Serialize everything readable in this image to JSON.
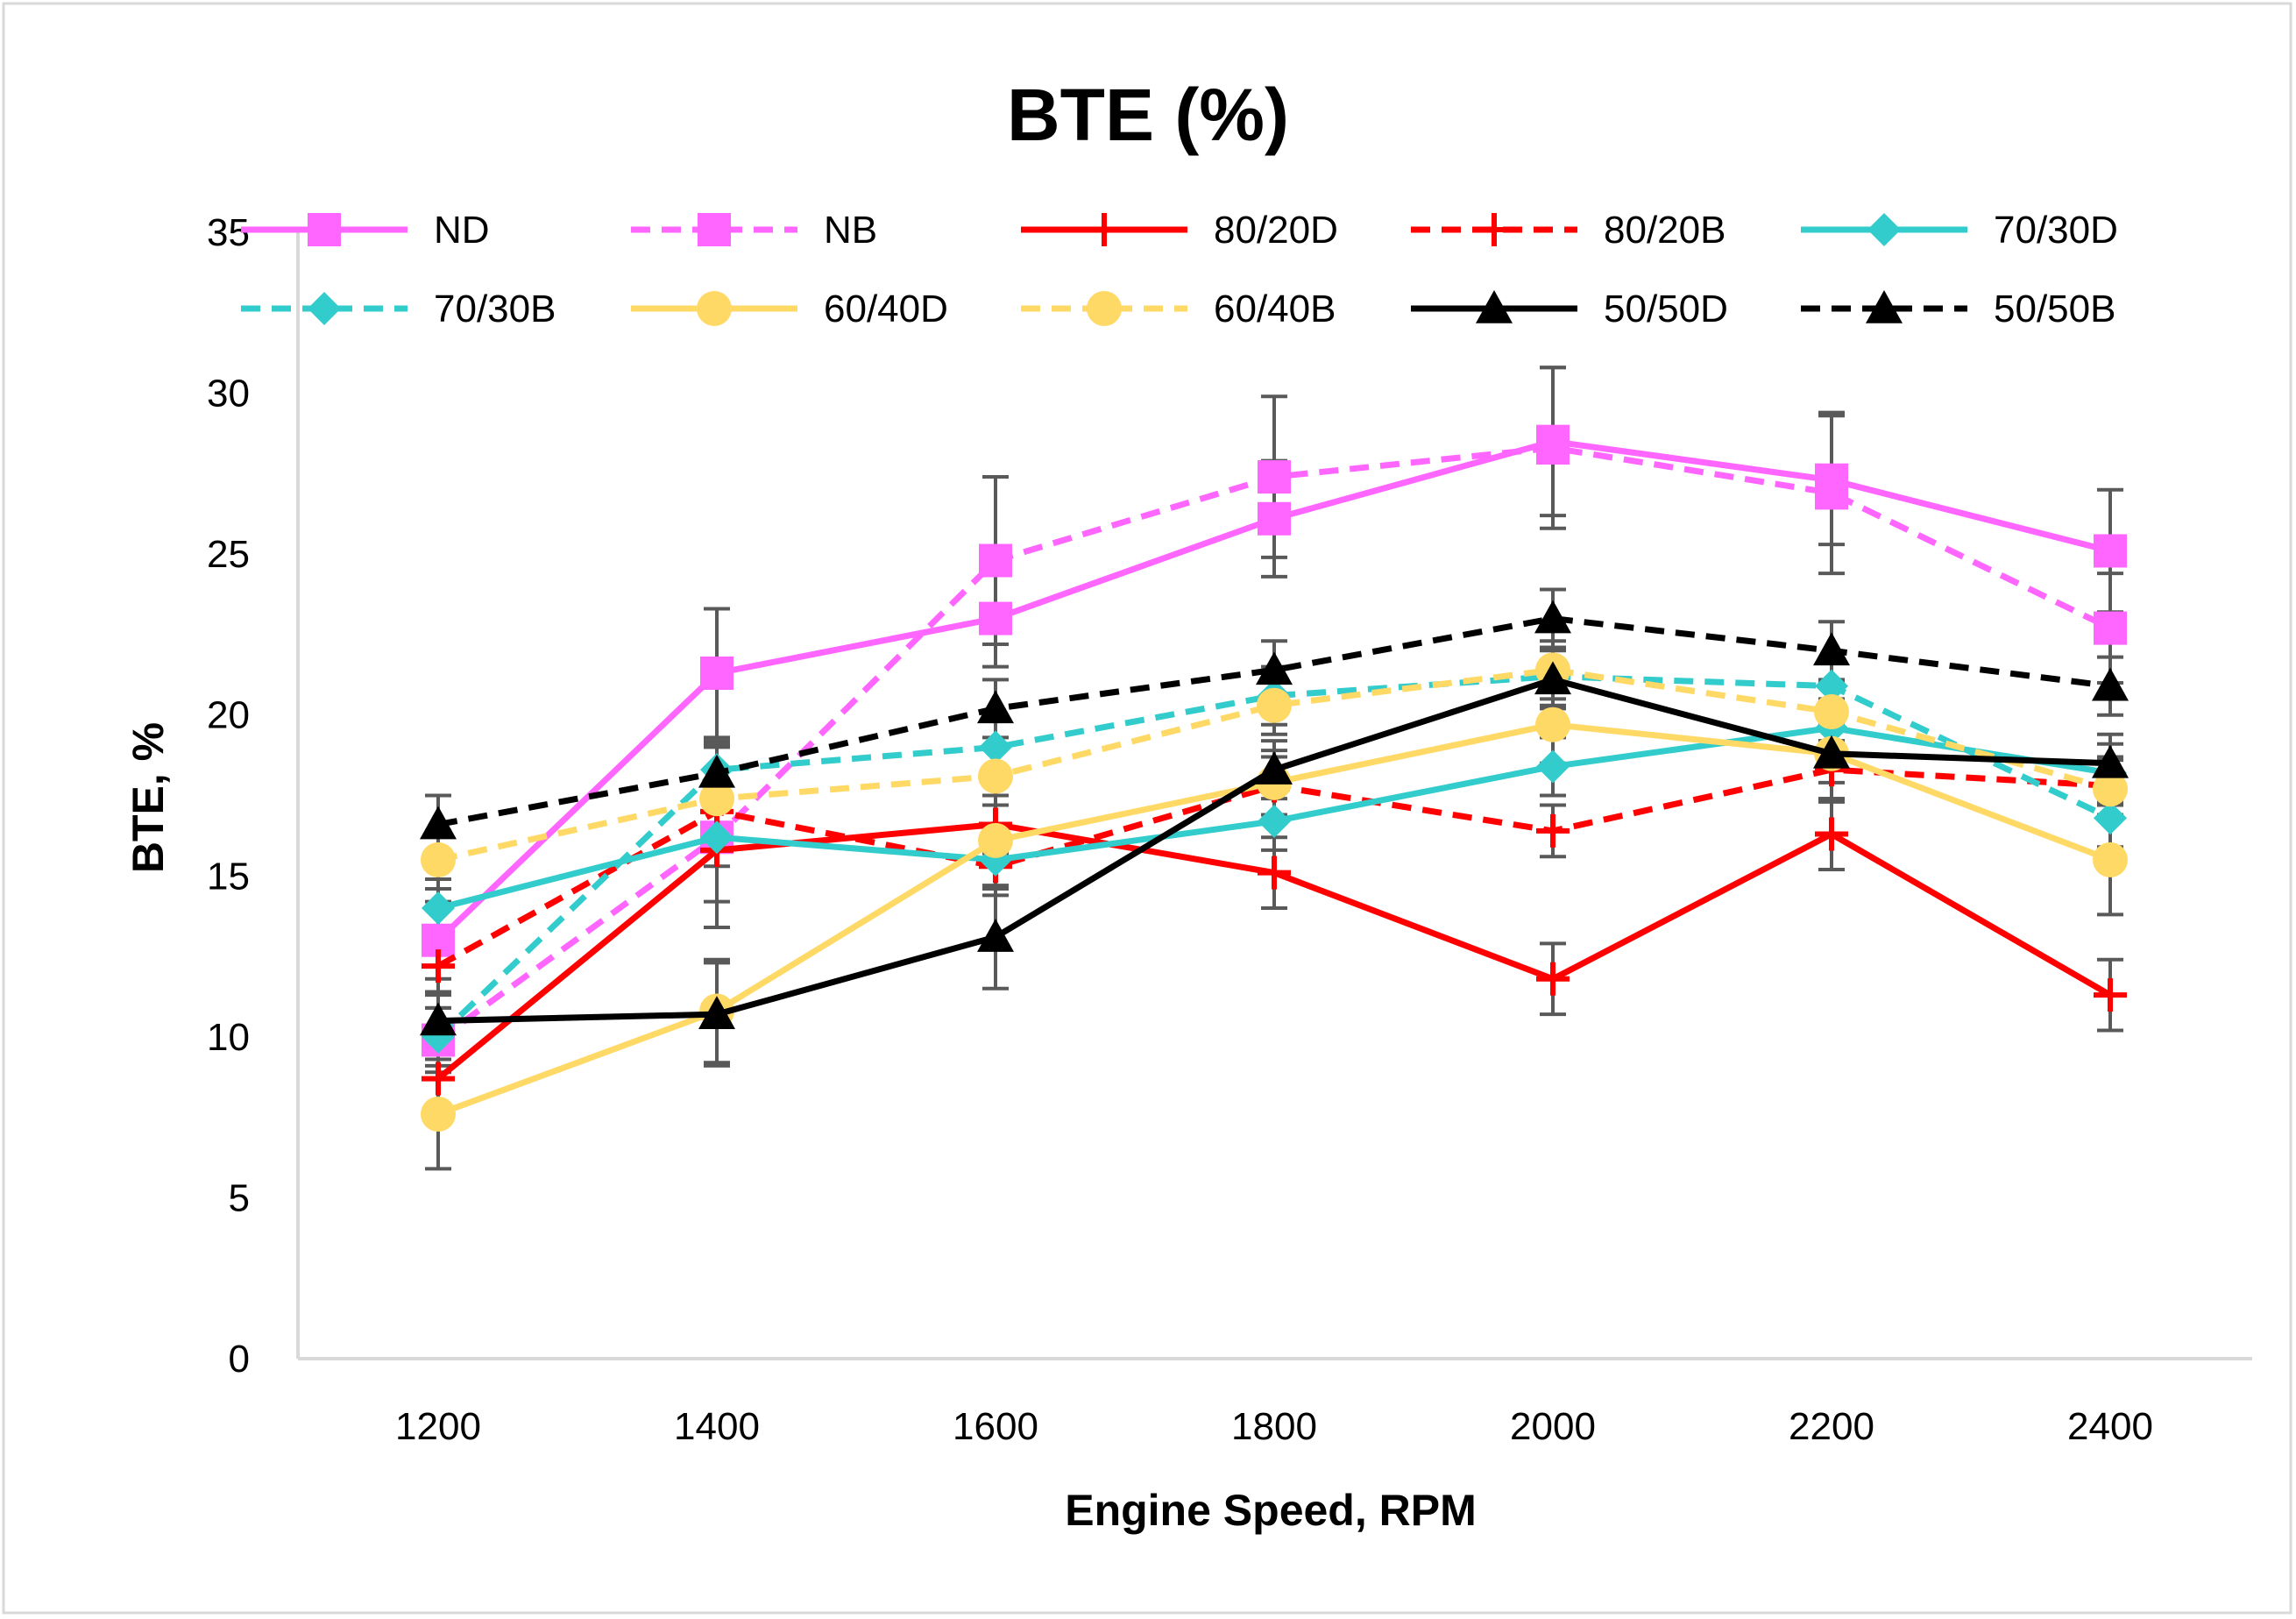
{
  "chart_data": {
    "type": "line",
    "title": "BTE (%)",
    "xlabel": "Engine Speed, RPM",
    "ylabel": "BTE, %",
    "categories": [
      "1200",
      "1400",
      "1600",
      "1800",
      "2000",
      "2200",
      "2400"
    ],
    "ylim": [
      0,
      35
    ],
    "yticks": [
      "0",
      "5",
      "10",
      "15",
      "20",
      "25",
      "30",
      "35"
    ],
    "grid": false,
    "legend_position": "top",
    "series": [
      {
        "name": "ND",
        "values": [
          13.0,
          21.3,
          23.0,
          26.1,
          28.5,
          27.3,
          25.1
        ],
        "error": [
          1.2,
          2.0,
          1.5,
          1.8,
          2.3,
          2.0,
          1.9
        ],
        "color": "#ff66ff",
        "dash": "solid",
        "marker": "square"
      },
      {
        "name": "NB",
        "values": [
          9.9,
          16.2,
          24.8,
          27.4,
          28.3,
          26.9,
          22.7
        ],
        "error": [
          1.0,
          2.8,
          2.6,
          2.5,
          2.5,
          2.5,
          1.7
        ],
        "color": "#ff66ff",
        "dash": "dashed",
        "marker": "square"
      },
      {
        "name": "80/20D",
        "values": [
          8.7,
          15.8,
          16.6,
          15.1,
          11.8,
          16.3,
          11.3
        ],
        "error": [
          1.0,
          1.6,
          0.9,
          1.1,
          1.1,
          1.1,
          1.1
        ],
        "color": "#ff0000",
        "dash": "solid",
        "marker": "plus"
      },
      {
        "name": "80/20B",
        "values": [
          12.2,
          17.0,
          15.3,
          17.8,
          16.4,
          18.3,
          17.8
        ],
        "error": [
          0.9,
          1.0,
          0.9,
          0.9,
          0.8,
          0.9,
          0.9
        ],
        "color": "#ff0000",
        "dash": "dashed",
        "marker": "plus"
      },
      {
        "name": "70/30D",
        "values": [
          14.0,
          16.2,
          15.5,
          16.7,
          18.4,
          19.6,
          18.2
        ],
        "error": [
          0.9,
          0.9,
          0.9,
          0.9,
          0.9,
          0.9,
          0.9
        ],
        "color": "#33cccc",
        "dash": "solid",
        "marker": "diamond"
      },
      {
        "name": "70/30B",
        "values": [
          10.0,
          18.3,
          19.0,
          20.6,
          21.2,
          20.9,
          16.8
        ],
        "error": [
          0.9,
          0.9,
          0.9,
          0.9,
          0.9,
          0.9,
          0.9
        ],
        "color": "#33cccc",
        "dash": "dashed",
        "marker": "diamond"
      },
      {
        "name": "60/40D",
        "values": [
          7.6,
          10.8,
          16.1,
          17.9,
          19.7,
          18.8,
          15.5
        ],
        "error": [
          1.7,
          1.6,
          1.4,
          1.0,
          1.2,
          1.5,
          1.7
        ],
        "color": "#ffd966",
        "dash": "solid",
        "marker": "circle"
      },
      {
        "name": "60/40B",
        "values": [
          15.5,
          17.4,
          18.1,
          20.3,
          21.4,
          20.1,
          17.7
        ],
        "error": [
          0.9,
          0.9,
          0.9,
          0.9,
          0.9,
          0.9,
          0.9
        ],
        "color": "#ffd966",
        "dash": "dashed",
        "marker": "circle"
      },
      {
        "name": "50/50D",
        "values": [
          10.5,
          10.7,
          13.1,
          18.3,
          21.1,
          18.8,
          18.5
        ],
        "error": [
          0.9,
          1.6,
          1.6,
          0.9,
          0.9,
          0.9,
          0.9
        ],
        "color": "#000000",
        "dash": "solid",
        "marker": "triangle"
      },
      {
        "name": "50/50B",
        "values": [
          16.6,
          18.2,
          20.2,
          21.4,
          23.0,
          22.0,
          20.9
        ],
        "error": [
          0.9,
          0.9,
          0.9,
          0.9,
          0.9,
          0.9,
          0.9
        ],
        "color": "#000000",
        "dash": "dashed",
        "marker": "triangle"
      }
    ]
  }
}
